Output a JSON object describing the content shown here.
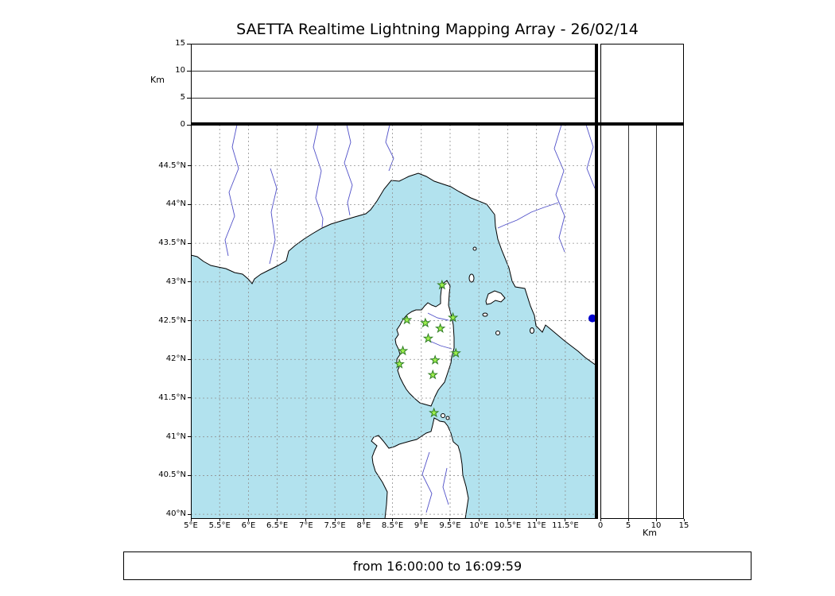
{
  "header": {
    "title": "SAETTA Realtime Lightning Mapping Array - 26/02/14"
  },
  "footer": {
    "time_range": "from 16:00:00 to 16:09:59"
  },
  "axes": {
    "altitude_axis_label": "Km",
    "distance_axis_label": "Km",
    "altitude_ticks": [
      {
        "value": 0,
        "label": "0"
      },
      {
        "value": 5,
        "label": "5"
      },
      {
        "value": 10,
        "label": "10"
      },
      {
        "value": 15,
        "label": "15"
      }
    ],
    "longitude_ticks": [
      {
        "value": 5,
        "label": "5°E"
      },
      {
        "value": 5.5,
        "label": "5.5°E"
      },
      {
        "value": 6,
        "label": "6°E"
      },
      {
        "value": 6.5,
        "label": "6.5°E"
      },
      {
        "value": 7,
        "label": "7°E"
      },
      {
        "value": 7.5,
        "label": "7.5°E"
      },
      {
        "value": 8,
        "label": "8°E"
      },
      {
        "value": 8.5,
        "label": "8.5°E"
      },
      {
        "value": 9,
        "label": "9°E"
      },
      {
        "value": 9.5,
        "label": "9.5°E"
      },
      {
        "value": 10,
        "label": "10°E"
      },
      {
        "value": 10.5,
        "label": "10.5°E"
      },
      {
        "value": 11,
        "label": "11°E"
      },
      {
        "value": 11.5,
        "label": "11.5°E"
      }
    ],
    "latitude_ticks": [
      {
        "value": 40,
        "label": "40°N"
      },
      {
        "value": 40.5,
        "label": "40.5°N"
      },
      {
        "value": 41,
        "label": "41°N"
      },
      {
        "value": 41.5,
        "label": "41.5°N"
      },
      {
        "value": 42,
        "label": "42°N"
      },
      {
        "value": 42.5,
        "label": "42.5°N"
      },
      {
        "value": 43,
        "label": "43°N"
      },
      {
        "value": 43.5,
        "label": "43.5°N"
      },
      {
        "value": 44,
        "label": "44°N"
      },
      {
        "value": 44.5,
        "label": "44.5°N"
      }
    ]
  },
  "chart_data": {
    "type": "scatter",
    "title": "SAETTA Realtime Lightning Mapping Array - 26/02/14",
    "date": "26/02/14",
    "time_window": {
      "start": "16:00:00",
      "end": "16:09:59"
    },
    "panels": [
      {
        "name": "altitude-longitude",
        "position": "top",
        "ylabel": "Km",
        "ylim": [
          0,
          15
        ],
        "gridlines_km": [
          5,
          10
        ],
        "points": []
      },
      {
        "name": "map",
        "position": "center",
        "lon_range": [
          5.0,
          12.04
        ],
        "lat_range": [
          39.94,
          45.03
        ],
        "grid_step_deg": 0.5,
        "grid": true
      },
      {
        "name": "altitude-latitude",
        "position": "right",
        "xlabel": "Km",
        "xlim": [
          0,
          15
        ],
        "gridlines_km": [
          5,
          10
        ],
        "points": []
      },
      {
        "name": "histogram",
        "position": "top-right",
        "points": []
      }
    ],
    "stations": [
      {
        "lon": 9.36,
        "lat": 42.96
      },
      {
        "lon": 8.75,
        "lat": 42.51
      },
      {
        "lon": 9.07,
        "lat": 42.47
      },
      {
        "lon": 9.55,
        "lat": 42.54
      },
      {
        "lon": 9.33,
        "lat": 42.4
      },
      {
        "lon": 9.12,
        "lat": 42.27
      },
      {
        "lon": 8.68,
        "lat": 42.11
      },
      {
        "lon": 9.6,
        "lat": 42.08
      },
      {
        "lon": 8.62,
        "lat": 41.94
      },
      {
        "lon": 9.24,
        "lat": 41.99
      },
      {
        "lon": 9.2,
        "lat": 41.8
      },
      {
        "lon": 9.22,
        "lat": 41.31
      }
    ],
    "sources": [
      {
        "lon": 11.97,
        "lat": 42.53
      }
    ]
  },
  "colors": {
    "sea": "#b2e2ee",
    "land": "#ffffff",
    "coastline": "#000000",
    "river": "#5050c8",
    "grid": "#909090",
    "panel_gridline": "#333333",
    "station_fill": "#9ef04e",
    "station_edge": "#2f7d24",
    "source": "#0000cc"
  }
}
